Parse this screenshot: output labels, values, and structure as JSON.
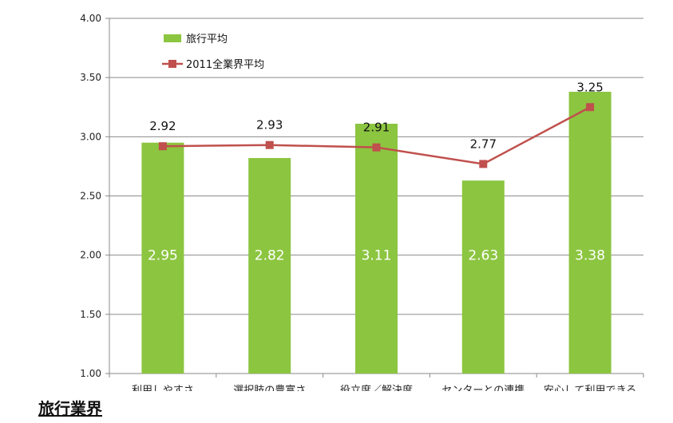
{
  "chart_data": {
    "type": "bar",
    "categories": [
      "利用しやすさ",
      "選択肢の豊富さ",
      "役立度／解決度",
      "センターとの連携",
      "安心して利用できる"
    ],
    "series": [
      {
        "name": "旅行平均",
        "type": "bar",
        "color": "#8cc540",
        "values": [
          2.95,
          2.82,
          3.11,
          2.63,
          3.38
        ],
        "labels": [
          "2.95",
          "2.82",
          "3.11",
          "2.63",
          "3.38"
        ]
      },
      {
        "name": "2011全業界平均",
        "type": "line",
        "color": "#c0504d",
        "values": [
          2.92,
          2.93,
          2.91,
          2.77,
          3.25
        ],
        "labels": [
          "2.92",
          "2.93",
          "2.91",
          "2.77",
          "3.25"
        ]
      }
    ],
    "ylim": [
      1.0,
      4.0
    ],
    "yticks": [
      "1.00",
      "1.50",
      "2.00",
      "2.50",
      "3.00",
      "3.50",
      "4.00"
    ],
    "grid": true,
    "legend_position": "top-left"
  },
  "footer": {
    "title": "旅行業界"
  }
}
